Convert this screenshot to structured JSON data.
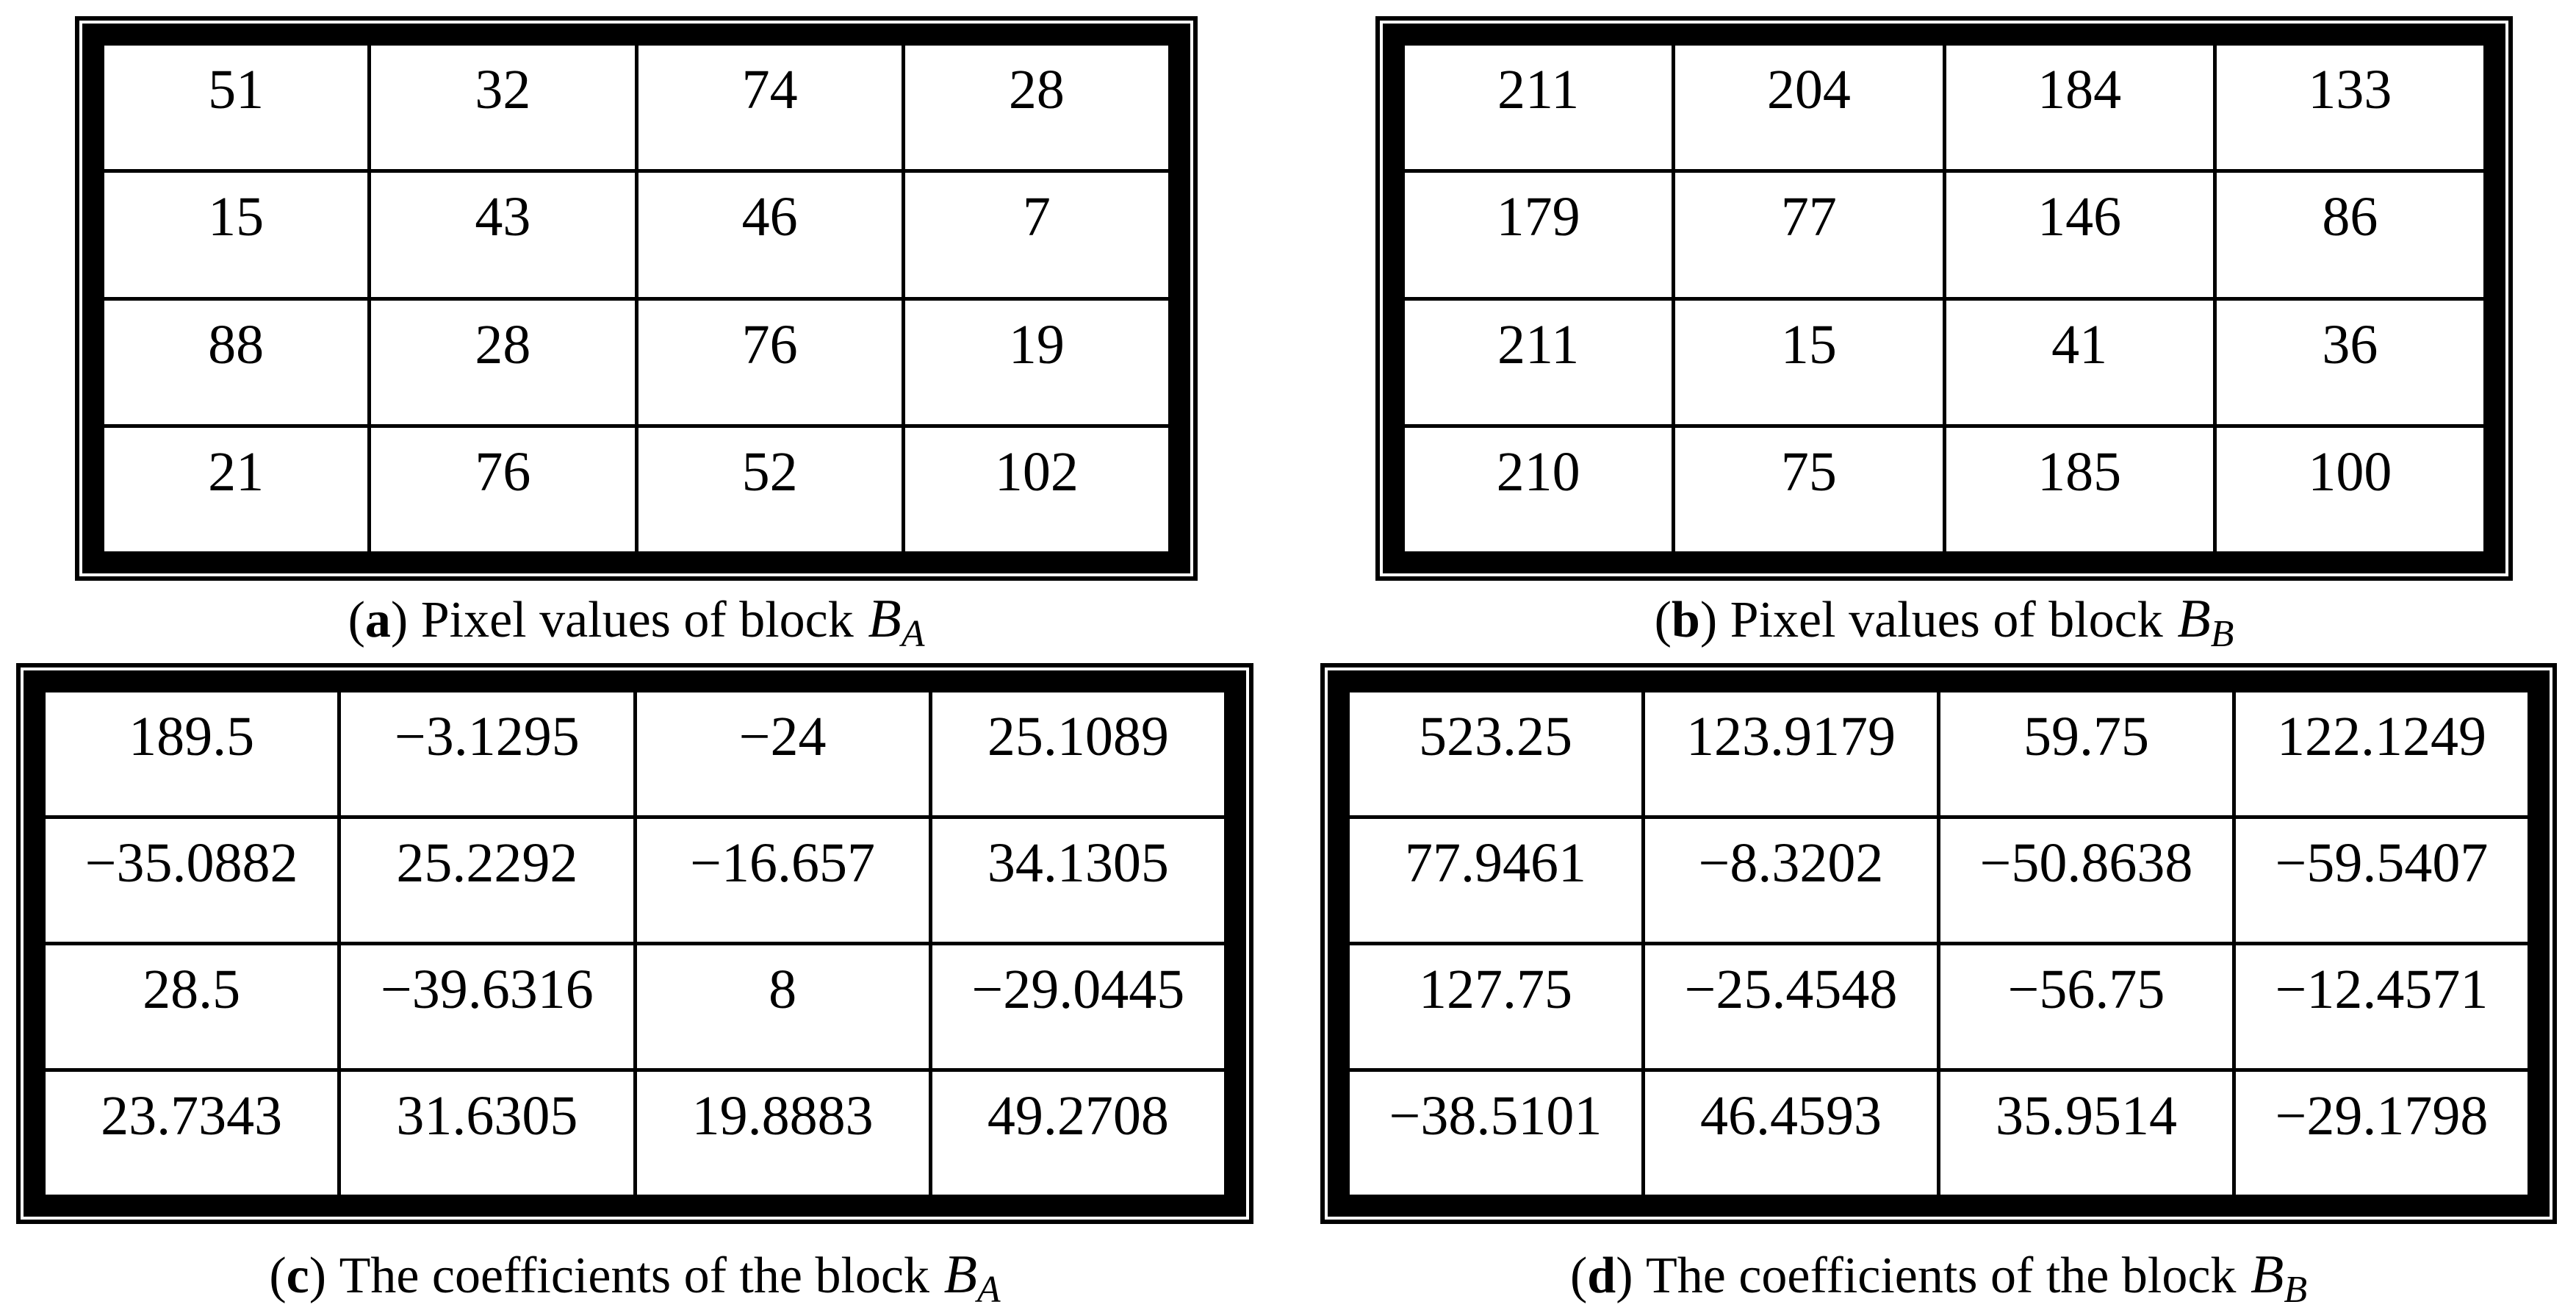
{
  "colors": {
    "ink": "#000000",
    "background": "#ffffff"
  },
  "figure": {
    "panels": [
      {
        "id": "a",
        "caption": {
          "letter": "a",
          "text": "Pixel values of block",
          "math_base": "B",
          "math_sub": "A"
        },
        "rows": [
          [
            "51",
            "32",
            "74",
            "28"
          ],
          [
            "15",
            "43",
            "46",
            "7"
          ],
          [
            "88",
            "28",
            "76",
            "19"
          ],
          [
            "21",
            "76",
            "52",
            "102"
          ]
        ]
      },
      {
        "id": "b",
        "caption": {
          "letter": "b",
          "text": "Pixel values of block",
          "math_base": "B",
          "math_sub": "B"
        },
        "rows": [
          [
            "211",
            "204",
            "184",
            "133"
          ],
          [
            "179",
            "77",
            "146",
            "86"
          ],
          [
            "211",
            "15",
            "41",
            "36"
          ],
          [
            "210",
            "75",
            "185",
            "100"
          ]
        ]
      },
      {
        "id": "c",
        "caption": {
          "letter": "c",
          "text": "The coefficients of the block",
          "math_base": "B",
          "math_sub": "A"
        },
        "rows": [
          [
            "189.5",
            "−3.1295",
            "−24",
            "25.1089"
          ],
          [
            "−35.0882",
            "25.2292",
            "−16.657",
            "34.1305"
          ],
          [
            "28.5",
            "−39.6316",
            "8",
            "−29.0445"
          ],
          [
            "23.7343",
            "31.6305",
            "19.8883",
            "49.2708"
          ]
        ]
      },
      {
        "id": "d",
        "caption": {
          "letter": "d",
          "text": "The coefficients of the block",
          "math_base": "B",
          "math_sub": "B"
        },
        "rows": [
          [
            "523.25",
            "123.9179",
            "59.75",
            "122.1249"
          ],
          [
            "77.9461",
            "−8.3202",
            "−50.8638",
            "−59.5407"
          ],
          [
            "127.75",
            "−25.4548",
            "−56.75",
            "−12.4571"
          ],
          [
            "−38.5101",
            "46.4593",
            "35.9514",
            "−29.1798"
          ]
        ]
      }
    ]
  }
}
